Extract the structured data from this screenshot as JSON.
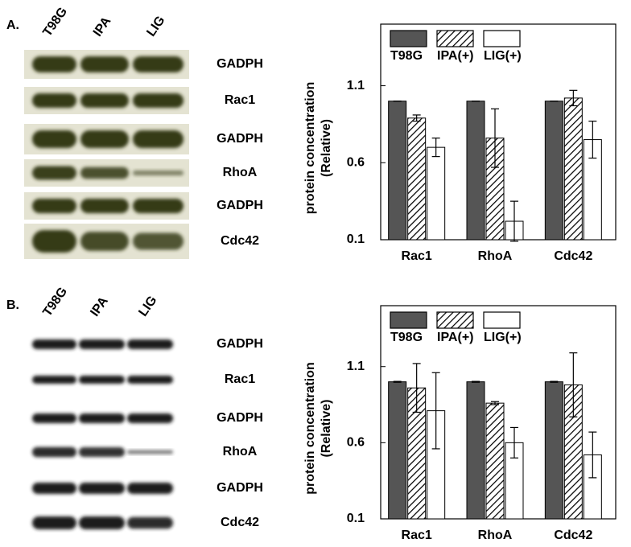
{
  "figure": {
    "panels": [
      {
        "label": "A.",
        "lanes": [
          "T98G",
          "IPA",
          "LIG"
        ],
        "bands": [
          "GADPH",
          "Rac1",
          "GADPH",
          "RhoA",
          "GADPH",
          "Cdc42"
        ]
      },
      {
        "label": "B.",
        "lanes": [
          "T98G",
          "IPA",
          "LIG"
        ],
        "bands": [
          "GADPH",
          "Rac1",
          "GADPH",
          "RhoA",
          "GADPH",
          "Cdc42"
        ]
      }
    ]
  },
  "chart_data": [
    {
      "type": "bar",
      "ylabel": [
        "protein concentration",
        "(Relative)"
      ],
      "categories": [
        "Rac1",
        "RhoA",
        "Cdc42"
      ],
      "series": [
        {
          "name": "T98G",
          "color": "#555555",
          "hatch": false,
          "values": [
            1.0,
            1.0,
            1.0
          ],
          "errors": [
            0,
            0,
            0
          ]
        },
        {
          "name": "IPA(+)",
          "color": "#ffffff",
          "hatch": true,
          "values": [
            0.89,
            0.76,
            1.02
          ],
          "errors": [
            0.02,
            0.19,
            0.05
          ]
        },
        {
          "name": "LIG(+)",
          "color": "#ffffff",
          "hatch": false,
          "values": [
            0.7,
            0.22,
            0.75
          ],
          "errors": [
            0.06,
            0.13,
            0.12
          ]
        }
      ],
      "ylim": [
        0.1,
        1.5
      ],
      "yticks": [
        0.1,
        0.6,
        1.1
      ],
      "legend": "top"
    },
    {
      "type": "bar",
      "ylabel": [
        "protein concentration",
        "(Relative)"
      ],
      "categories": [
        "Rac1",
        "RhoA",
        "Cdc42"
      ],
      "series": [
        {
          "name": "T98G",
          "color": "#555555",
          "hatch": false,
          "values": [
            1.0,
            1.0,
            1.0
          ],
          "errors": [
            0.003,
            0.003,
            0.003
          ]
        },
        {
          "name": "IPA(+)",
          "color": "#ffffff",
          "hatch": true,
          "values": [
            0.96,
            0.86,
            0.98
          ],
          "errors": [
            0.16,
            0.01,
            0.21
          ]
        },
        {
          "name": "LIG(+)",
          "color": "#ffffff",
          "hatch": false,
          "values": [
            0.81,
            0.6,
            0.52
          ],
          "errors": [
            0.25,
            0.1,
            0.15
          ]
        }
      ],
      "ylim": [
        0.1,
        1.5
      ],
      "yticks": [
        0.1,
        0.6,
        1.1
      ],
      "legend": "top"
    }
  ]
}
